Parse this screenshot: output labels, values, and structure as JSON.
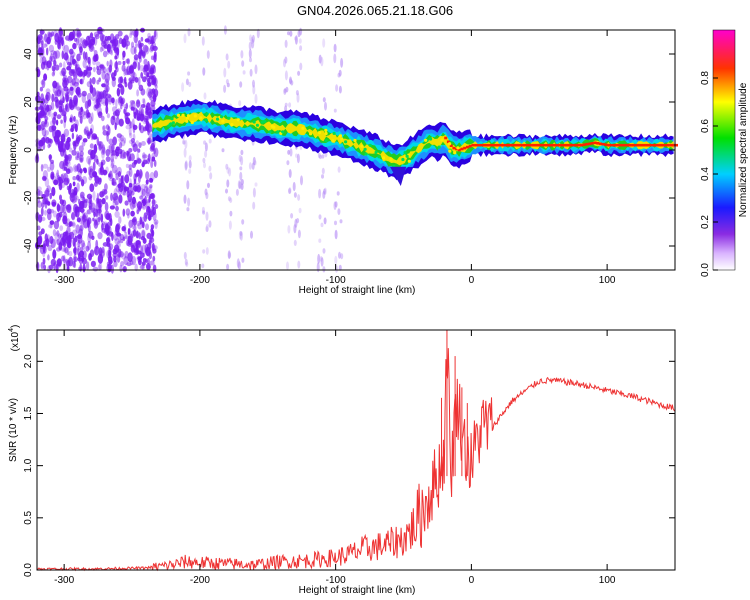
{
  "title": "GN04.2026.065.21.18.G06",
  "colors": {
    "snr_line": "#ee3333",
    "noise": "#7a1cf0",
    "frame": "#000000"
  },
  "chart_data": [
    {
      "type": "heatmap",
      "panel": "top",
      "xlabel": "Height of straight line (km)",
      "ylabel": "Frequency (Hz)",
      "xlim": [
        -320,
        150
      ],
      "ylim": [
        -50,
        50
      ],
      "xticks": [
        -300,
        -200,
        -100,
        0,
        100
      ],
      "yticks": [
        -40,
        -20,
        0,
        20,
        40
      ],
      "colorbar": {
        "label": "Normalized spectral amplitude",
        "range": [
          0,
          1
        ],
        "ticks": [
          "0.0",
          "0.2",
          "0.4",
          "0.6",
          "0.8"
        ],
        "tick_values": [
          0,
          0.2,
          0.4,
          0.6,
          0.8
        ],
        "colormap": "rainbow (white-purple-blue-cyan-green-yellow-red-magenta)"
      },
      "noise_region_x": [
        -320,
        -232
      ],
      "signal_ridge": {
        "x": [
          -235,
          -220,
          -210,
          -200,
          -190,
          -180,
          -170,
          -160,
          -150,
          -140,
          -130,
          -120,
          -110,
          -100,
          -90,
          -80,
          -70,
          -60,
          -55,
          -50,
          -45,
          -40,
          -35,
          -30,
          -25,
          -20,
          -15,
          -10,
          -5,
          0,
          20,
          40,
          60,
          80,
          90,
          100,
          120,
          150
        ],
        "frequency": [
          10,
          12,
          13,
          14,
          13,
          12,
          11,
          11,
          10,
          9,
          9,
          8,
          6,
          5,
          3,
          1,
          -1,
          -4,
          -5,
          -4,
          -2,
          0,
          2,
          4,
          3,
          5,
          1,
          0,
          1,
          2,
          2,
          2,
          2,
          2,
          3,
          2,
          2,
          2
        ]
      }
    },
    {
      "type": "line",
      "panel": "bottom",
      "xlabel": "Height of straight line (km)",
      "ylabel": "SNR (10 * v/v)",
      "multiplier": "(x10",
      "multiplier_exp": "4",
      "multiplier_close": ")",
      "xlim": [
        -320,
        150
      ],
      "ylim": [
        0,
        2.3
      ],
      "xticks": [
        -300,
        -200,
        -100,
        0,
        100
      ],
      "yticks": [
        "0.0",
        "0.5",
        "1.0",
        "1.5",
        "2.0"
      ],
      "ytick_values": [
        0,
        0.5,
        1.0,
        1.5,
        2.0
      ],
      "series": [
        {
          "name": "SNR",
          "x": [
            -320,
            -280,
            -240,
            -220,
            -210,
            -200,
            -180,
            -160,
            -140,
            -120,
            -100,
            -90,
            -80,
            -70,
            -60,
            -50,
            -40,
            -35,
            -30,
            -25,
            -20,
            -18,
            -15,
            -12,
            -10,
            -5,
            0,
            5,
            10,
            15,
            20,
            30,
            40,
            50,
            60,
            70,
            80,
            90,
            100,
            110,
            120,
            130,
            140,
            150
          ],
          "values": [
            0.01,
            0.01,
            0.02,
            0.05,
            0.08,
            0.07,
            0.06,
            0.05,
            0.08,
            0.09,
            0.12,
            0.15,
            0.2,
            0.22,
            0.25,
            0.3,
            0.45,
            0.6,
            0.75,
            0.9,
            1.1,
            2.3,
            0.9,
            1.5,
            1.6,
            1.2,
            1.0,
            1.3,
            1.4,
            1.35,
            1.45,
            1.62,
            1.72,
            1.81,
            1.82,
            1.8,
            1.78,
            1.75,
            1.72,
            1.69,
            1.66,
            1.62,
            1.58,
            1.55
          ]
        }
      ]
    }
  ]
}
